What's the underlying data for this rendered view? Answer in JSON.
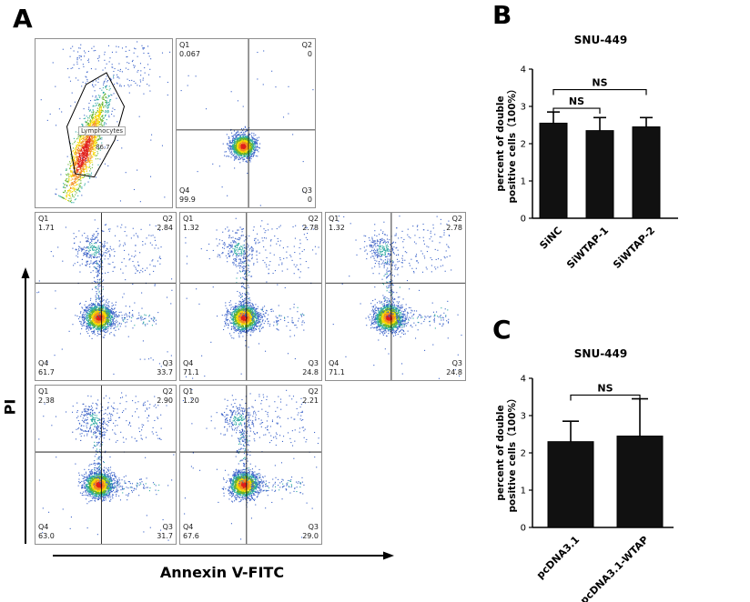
{
  "panel_a": {
    "label": "A",
    "x_axis_label": "Annexin V-FITC",
    "y_axis_label": "PI",
    "gate_plot": {
      "name": "lymphocyte-gating",
      "gate_name": "Lymphocytes",
      "gate_value": "86.7"
    },
    "quad_plots": [
      {
        "name": "unstained-control",
        "row": 1,
        "col": 2,
        "profile": "control",
        "q1_label": "Q1",
        "q1": "0.067",
        "q2_label": "Q2",
        "q2": "0",
        "q3_label": "Q3",
        "q3": "0",
        "q4_label": "Q4",
        "q4": "99.9"
      },
      {
        "name": "sinc",
        "row": 2,
        "col": 1,
        "profile": "stained",
        "q1_label": "Q1",
        "q1": "1.71",
        "q2_label": "Q2",
        "q2": "2.84",
        "q3_label": "Q3",
        "q3": "33.7",
        "q4_label": "Q4",
        "q4": "61.7"
      },
      {
        "name": "siwtap-1",
        "row": 2,
        "col": 2,
        "profile": "stained",
        "q1_label": "Q1",
        "q1": "1.32",
        "q2_label": "Q2",
        "q2": "2.78",
        "q3_label": "Q3",
        "q3": "24.8",
        "q4_label": "Q4",
        "q4": "71.1"
      },
      {
        "name": "siwtap-2",
        "row": 2,
        "col": 3,
        "profile": "stained",
        "q1_label": "Q1",
        "q1": "1.32",
        "q2_label": "Q2",
        "q2": "2.78",
        "q3_label": "Q3",
        "q3": "24.8",
        "q4_label": "Q4",
        "q4": "71.1"
      },
      {
        "name": "pcdna3.1",
        "row": 3,
        "col": 1,
        "profile": "stained",
        "q1_label": "Q1",
        "q1": "2.38",
        "q2_label": "Q2",
        "q2": "2.90",
        "q3_label": "Q3",
        "q3": "31.7",
        "q4_label": "Q4",
        "q4": "63.0"
      },
      {
        "name": "pcdna3.1-wtap",
        "row": 3,
        "col": 2,
        "profile": "stained",
        "q1_label": "Q1",
        "q1": "1.20",
        "q2_label": "Q2",
        "q2": "2.21",
        "q3_label": "Q3",
        "q3": "29.0",
        "q4_label": "Q4",
        "q4": "67.6"
      }
    ]
  },
  "chart_data": [
    {
      "panel_label": "B",
      "type": "bar",
      "title": "SNU-449",
      "categories": [
        "SiNC",
        "SiWTAP-1",
        "SiWTAP-2"
      ],
      "values": [
        2.55,
        2.35,
        2.45
      ],
      "errors": [
        0.3,
        0.35,
        0.25
      ],
      "ylabel_line1": "percent of double",
      "ylabel_line2": "positive cells（100%）",
      "ylim": [
        0,
        4
      ],
      "yticks": [
        0,
        1,
        2,
        3,
        4
      ],
      "bar_color": "#111111",
      "grid": false,
      "legend": "none",
      "annotations": [
        {
          "label": "NS",
          "from": 0,
          "to": 1,
          "height": 2.95
        },
        {
          "label": "NS",
          "from": 0,
          "to": 2,
          "height": 3.45
        }
      ]
    },
    {
      "panel_label": "C",
      "type": "bar",
      "title": "SNU-449",
      "categories": [
        "pcDNA3.1",
        "pcDNA3.1-WTAP"
      ],
      "values": [
        2.3,
        2.45
      ],
      "errors": [
        0.55,
        1.0
      ],
      "ylabel_line1": "percent of double",
      "ylabel_line2": "positive cells（100%）",
      "ylim": [
        0,
        4
      ],
      "yticks": [
        0,
        1,
        2,
        3,
        4
      ],
      "bar_color": "#111111",
      "grid": false,
      "legend": "none",
      "annotations": [
        {
          "label": "NS",
          "from": 0,
          "to": 1,
          "height": 3.55
        }
      ]
    }
  ]
}
